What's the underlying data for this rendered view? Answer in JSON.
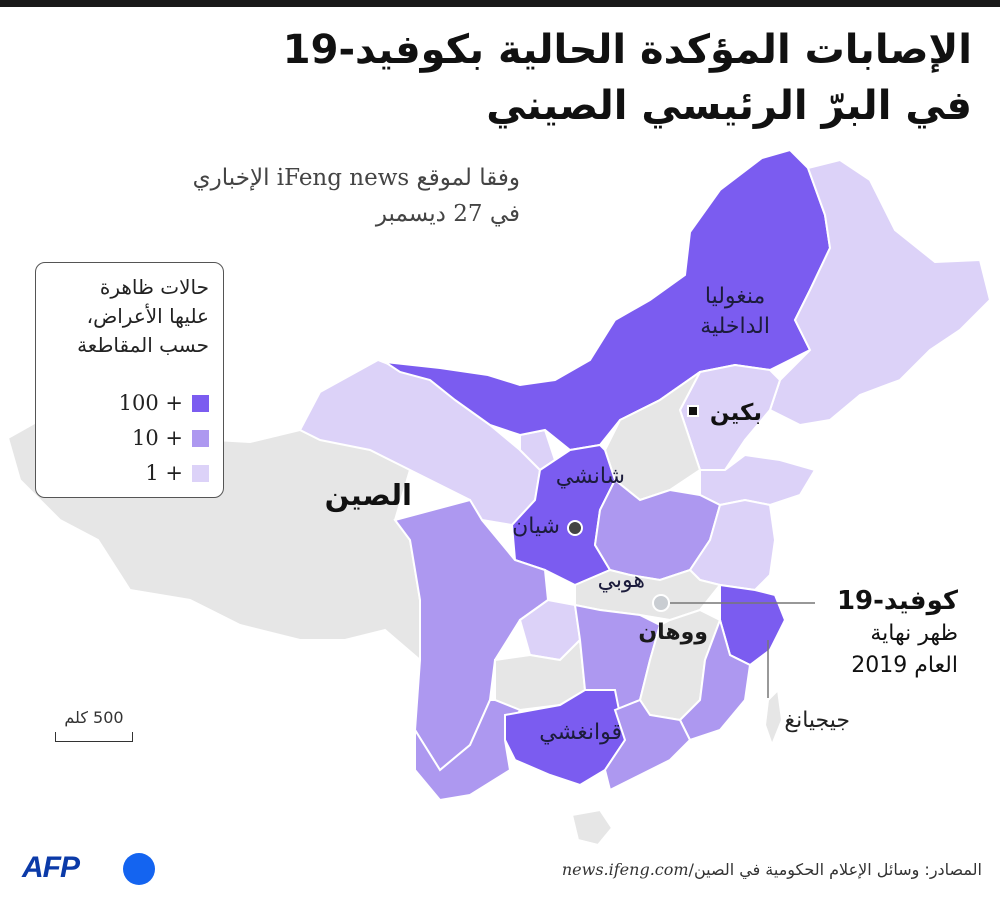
{
  "title": {
    "line1": "الإصابات المؤكدة الحالية بكوفيد-19",
    "line2": "في البرّ الرئيسي الصيني"
  },
  "subtitle": {
    "line1": "وفقا لموقع iFeng news الإخباري",
    "line2": "في 27  ديسمبر"
  },
  "legend": {
    "title_line1": "حالات ظاهرة",
    "title_line2": "عليها الأعراض،",
    "title_line3": "حسب المقاطعة",
    "items": [
      {
        "label": "100 +",
        "color": "#7b5cf0"
      },
      {
        "label": "10 +",
        "color": "#ad98f0"
      },
      {
        "label": "1 +",
        "color": "#dcd2f8"
      }
    ]
  },
  "colors": {
    "no_cases": "#e6e6e6",
    "dark": "#7b5cf0",
    "medium": "#ad98f0",
    "light": "#dcd2f8",
    "outline": "#ffffff"
  },
  "labels": {
    "inner_mongolia_line1": "منغوليا",
    "inner_mongolia_line2": "الداخلية",
    "beijing": "بكين",
    "china": "الصين",
    "shanxi": "شانشي",
    "xian": "شيان",
    "hubei": "هوبي",
    "wuhan": "ووهان",
    "zhejiang": "جيجيانغ",
    "guangxi": "قوانغشي"
  },
  "covid_note": {
    "heading": "كوفيد-19",
    "line1": "ظهر نهاية",
    "line2": "العام 2019"
  },
  "scale": {
    "label": "500 كلم"
  },
  "logo": {
    "text": "AFP"
  },
  "source": {
    "prefix": "المصادر: وسائل الإعلام الحكومية في الصين/",
    "url": "news.ifeng.com"
  }
}
